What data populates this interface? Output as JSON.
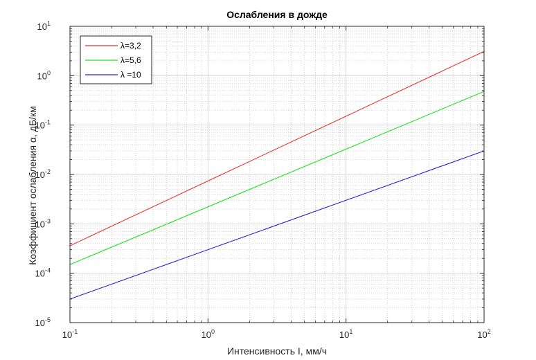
{
  "chart_data": {
    "type": "line",
    "title": "Ослабления в дожде",
    "xlabel": "Интенсивность I, мм/ч",
    "ylabel": "Коэффициент ослабления α, дБ/км",
    "xscale": "log",
    "yscale": "log",
    "xlim": [
      0.1,
      100
    ],
    "ylim": [
      1e-05,
      10
    ],
    "x_ticks": [
      {
        "base": "10",
        "exp": "-1",
        "value": 0.1
      },
      {
        "base": "10",
        "exp": "0",
        "value": 1
      },
      {
        "base": "10",
        "exp": "1",
        "value": 10
      },
      {
        "base": "10",
        "exp": "2",
        "value": 100
      }
    ],
    "y_ticks": [
      {
        "base": "10",
        "exp": "-5",
        "value": 1e-05
      },
      {
        "base": "10",
        "exp": "-4",
        "value": 0.0001
      },
      {
        "base": "10",
        "exp": "-3",
        "value": 0.001
      },
      {
        "base": "10",
        "exp": "-2",
        "value": 0.01
      },
      {
        "base": "10",
        "exp": "-1",
        "value": 0.1
      },
      {
        "base": "10",
        "exp": "0",
        "value": 1
      },
      {
        "base": "10",
        "exp": "1",
        "value": 10
      }
    ],
    "grid": true,
    "minor_grid": true,
    "legend_position": "top-left",
    "series": [
      {
        "name": "λ=3,2",
        "color": "#e8322a",
        "x": [
          0.1,
          100
        ],
        "y": [
          0.00036,
          3.1
        ]
      },
      {
        "name": "λ=5,6",
        "color": "#1ee01e",
        "x": [
          0.1,
          100
        ],
        "y": [
          0.00015,
          0.48
        ]
      },
      {
        "name": "λ =10",
        "color": "#2424d0",
        "x": [
          0.1,
          100
        ],
        "y": [
          3e-05,
          0.03
        ]
      }
    ]
  }
}
